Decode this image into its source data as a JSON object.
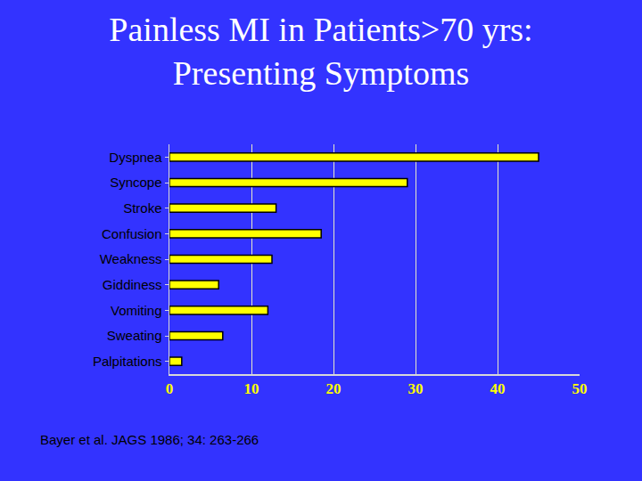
{
  "chart_data": {
    "type": "bar",
    "title": "Painless MI in Patients>70 yrs:\nPresenting Symptoms",
    "orientation": "horizontal",
    "categories": [
      "Dyspnea",
      "Syncope",
      "Stroke",
      "Confusion",
      "Weakness",
      "Giddiness",
      "Vomiting",
      "Sweating",
      "Palpitations"
    ],
    "values": [
      45,
      29,
      13,
      18.5,
      12.5,
      6,
      12,
      6.5,
      1.5
    ],
    "color": "#ffff00",
    "xlim": [
      0,
      50
    ],
    "xticks": [
      0,
      10,
      20,
      30,
      40,
      50
    ],
    "grid": true,
    "annotations": [
      "Bayer et al. JAGS 1986; 34: 263-266"
    ]
  }
}
